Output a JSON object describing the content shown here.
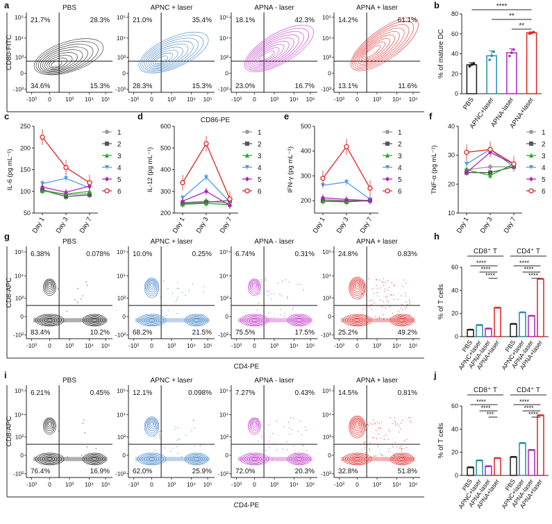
{
  "colors": {
    "black": "#1a1a1a",
    "blue": "#3b7fc4",
    "magenta": "#c030c8",
    "red": "#e02020",
    "gray": "#9a9a9a",
    "darkgray": "#555555",
    "green": "#22aa22",
    "lightblue": "#4c9be8",
    "teal": "#1f8fa0",
    "purple": "#b020c0"
  },
  "panel_letters": [
    "a",
    "b",
    "c",
    "d",
    "e",
    "f",
    "g",
    "h",
    "i",
    "j"
  ],
  "flow_a": {
    "xlabel": "CD86-PE",
    "ylabel": "CD80-FITC",
    "xticks": [
      "-10³",
      "0",
      "10³",
      "10⁴",
      "10⁵"
    ],
    "yticks": [
      "10⁵",
      "10⁴",
      "10³",
      "0",
      "-10³"
    ],
    "panels": [
      {
        "title": "PBS",
        "color_key": "black",
        "q": [
          "21.7%",
          "28.3%",
          "34.6%",
          "15.3%"
        ]
      },
      {
        "title": "APNC + laser",
        "color_key": "blue",
        "q": [
          "21.0%",
          "35.4%",
          "28.3%",
          "15.3%"
        ]
      },
      {
        "title": "APNA - laser",
        "color_key": "magenta",
        "q": [
          "18.1%",
          "42.3%",
          "23.0%",
          "16.7%"
        ]
      },
      {
        "title": "APNA + laser",
        "color_key": "red",
        "q": [
          "14.2%",
          "61.1%",
          "13.1%",
          "11.6%"
        ]
      }
    ]
  },
  "flow_g": {
    "xlabel": "CD4-PE",
    "ylabel": "CD8-APC",
    "xticks": [
      "-10³",
      "0",
      "10³",
      "10⁴",
      "10⁵"
    ],
    "yticks": [
      "10⁵",
      "10⁴",
      "10³",
      "0",
      "-10³"
    ],
    "panels": [
      {
        "title": "PBS",
        "color_key": "black",
        "q": [
          "6.38%",
          "0.078%",
          "83.4%",
          "10.2%"
        ]
      },
      {
        "title": "APNC + laser",
        "color_key": "blue",
        "q": [
          "10.0%",
          "0.25%",
          "68.2%",
          "21.5%"
        ]
      },
      {
        "title": "APNA - laser",
        "color_key": "magenta",
        "q": [
          "6.74%",
          "0.31%",
          "75.5%",
          "17.5%"
        ]
      },
      {
        "title": "APNA + laser",
        "color_key": "red",
        "q": [
          "24.8%",
          "0.83%",
          "25.2%",
          "49.2%"
        ]
      }
    ]
  },
  "flow_i": {
    "xlabel": "CD4-PE",
    "ylabel": "CD8-APC",
    "xticks": [
      "-10³",
      "0",
      "10³",
      "10⁴",
      "10⁵"
    ],
    "yticks": [
      "10⁵",
      "10⁴",
      "10³",
      "0",
      "-10³"
    ],
    "panels": [
      {
        "title": "PBS",
        "color_key": "black",
        "q": [
          "6.21%",
          "0.45%",
          "76.4%",
          "16.9%"
        ]
      },
      {
        "title": "APNC + laser",
        "color_key": "blue",
        "q": [
          "12.1%",
          "0.098%",
          "62.0%",
          "25.9%"
        ]
      },
      {
        "title": "APNA - laser",
        "color_key": "magenta",
        "q": [
          "7.27%",
          "0.43%",
          "72.0%",
          "20.3%"
        ]
      },
      {
        "title": "APNA + laser",
        "color_key": "red",
        "q": [
          "14.5%",
          "0.81%",
          "32.8%",
          "51.8%"
        ]
      }
    ]
  },
  "chart_data": [
    {
      "id": "b",
      "type": "bar",
      "title": "",
      "ylabel": "% of mature DC",
      "categories": [
        "PBS",
        "APNC+laser",
        "APNA-laser",
        "APNA+laser"
      ],
      "values": [
        29,
        38,
        41,
        61
      ],
      "errors": [
        2,
        5,
        4,
        1
      ],
      "colors": [
        "#1a1a1a",
        "#1f8fa0",
        "#b020c0",
        "#e02020"
      ],
      "ylim": [
        0,
        80
      ],
      "yticks": [
        "0",
        "20",
        "40",
        "60",
        "80"
      ],
      "significance": [
        "****",
        "**",
        "**"
      ]
    },
    {
      "id": "c",
      "type": "line",
      "ylabel": "IL-6 (pg mL⁻¹)",
      "categories": [
        "Day 1",
        "Day 3",
        "Day 7"
      ],
      "ylim": [
        50,
        250
      ],
      "yticks": [
        "50",
        "100",
        "150",
        "200",
        "250"
      ],
      "series": [
        {
          "name": "1",
          "values": [
            104,
            92,
            95
          ],
          "color": "#9a9a9a",
          "marker": "circle"
        },
        {
          "name": "2",
          "values": [
            103,
            88,
            92
          ],
          "color": "#555555",
          "marker": "square"
        },
        {
          "name": "3",
          "values": [
            101,
            94,
            100
          ],
          "color": "#22aa22",
          "marker": "triangle"
        },
        {
          "name": "4",
          "values": [
            118,
            130,
            108
          ],
          "color": "#4c9be8",
          "marker": "tridown"
        },
        {
          "name": "5",
          "values": [
            110,
            98,
            112
          ],
          "color": "#b020c0",
          "marker": "diamond"
        },
        {
          "name": "6",
          "values": [
            225,
            155,
            120
          ],
          "color": "#e02020",
          "marker": "opencircle"
        }
      ]
    },
    {
      "id": "d",
      "type": "line",
      "ylabel": "IL-12 (pg mL⁻¹)",
      "categories": [
        "Day 1",
        "Day 3",
        "Day 7"
      ],
      "ylim": [
        200,
        600
      ],
      "yticks": [
        "200",
        "300",
        "400",
        "500",
        "600"
      ],
      "series": [
        {
          "name": "1",
          "values": [
            248,
            255,
            245
          ],
          "color": "#9a9a9a",
          "marker": "circle"
        },
        {
          "name": "2",
          "values": [
            245,
            250,
            258
          ],
          "color": "#555555",
          "marker": "square"
        },
        {
          "name": "3",
          "values": [
            240,
            245,
            238
          ],
          "color": "#22aa22",
          "marker": "triangle"
        },
        {
          "name": "4",
          "values": [
            270,
            365,
            250
          ],
          "color": "#4c9be8",
          "marker": "tridown"
        },
        {
          "name": "5",
          "values": [
            255,
            300,
            235
          ],
          "color": "#b020c0",
          "marker": "diamond"
        },
        {
          "name": "6",
          "values": [
            340,
            520,
            265
          ],
          "color": "#e02020",
          "marker": "opencircle"
        }
      ]
    },
    {
      "id": "e",
      "type": "line",
      "ylabel": "IFN-γ (pg mL⁻¹)",
      "categories": [
        "Day 1",
        "Day 3",
        "Day 7"
      ],
      "ylim": [
        150,
        500
      ],
      "yticks": [
        "200",
        "300",
        "400",
        "500"
      ],
      "series": [
        {
          "name": "1",
          "values": [
            205,
            200,
            198
          ],
          "color": "#9a9a9a",
          "marker": "circle"
        },
        {
          "name": "2",
          "values": [
            200,
            198,
            202
          ],
          "color": "#555555",
          "marker": "square"
        },
        {
          "name": "3",
          "values": [
            198,
            195,
            200
          ],
          "color": "#22aa22",
          "marker": "triangle"
        },
        {
          "name": "4",
          "values": [
            262,
            275,
            205
          ],
          "color": "#4c9be8",
          "marker": "tridown"
        },
        {
          "name": "5",
          "values": [
            212,
            205,
            200
          ],
          "color": "#b020c0",
          "marker": "diamond"
        },
        {
          "name": "6",
          "values": [
            290,
            418,
            250
          ],
          "color": "#e02020",
          "marker": "opencircle"
        }
      ]
    },
    {
      "id": "f",
      "type": "line",
      "ylabel": "TNF-α (pg mL⁻¹)",
      "categories": [
        "Day 1",
        "Day 3",
        "Day 7"
      ],
      "ylim": [
        10,
        40
      ],
      "yticks": [
        "10",
        "20",
        "30",
        "40"
      ],
      "series": [
        {
          "name": "1",
          "values": [
            25,
            26,
            26
          ],
          "color": "#9a9a9a",
          "marker": "circle"
        },
        {
          "name": "2",
          "values": [
            24,
            24,
            26
          ],
          "color": "#555555",
          "marker": "square"
        },
        {
          "name": "3",
          "values": [
            25,
            23,
            27
          ],
          "color": "#22aa22",
          "marker": "triangle"
        },
        {
          "name": "4",
          "values": [
            27,
            32,
            26
          ],
          "color": "#4c9be8",
          "marker": "tridown"
        },
        {
          "name": "5",
          "values": [
            24,
            31,
            27
          ],
          "color": "#b020c0",
          "marker": "diamond"
        },
        {
          "name": "6",
          "values": [
            31,
            32,
            27
          ],
          "color": "#e02020",
          "marker": "opencircle"
        }
      ]
    },
    {
      "id": "h",
      "type": "bar",
      "ylabel": "% of T cells",
      "groups": [
        "CD8⁺ T",
        "CD4⁺ T"
      ],
      "categories": [
        "PBS",
        "APNC+laser",
        "APNA-laser",
        "APNA+laser"
      ],
      "series": [
        {
          "name": "CD8⁺ T",
          "values": [
            6,
            10,
            7,
            25
          ]
        },
        {
          "name": "CD4⁺ T",
          "values": [
            11,
            21,
            18,
            50
          ]
        }
      ],
      "colors": [
        "#1a1a1a",
        "#1f8fa0",
        "#b020c0",
        "#e02020"
      ],
      "ylim": [
        0,
        60
      ],
      "yticks": [
        "0",
        "20",
        "40",
        "60"
      ],
      "significance": [
        "****",
        "****",
        "****",
        "****",
        "****",
        "****"
      ]
    },
    {
      "id": "j",
      "type": "bar",
      "ylabel": "% of T cells",
      "groups": [
        "CD8⁺ T",
        "CD4⁺ T"
      ],
      "categories": [
        "PBS",
        "APNC+laser",
        "APNA-laser",
        "APNA+laser"
      ],
      "series": [
        {
          "name": "CD8⁺ T",
          "values": [
            7,
            13,
            8,
            15
          ]
        },
        {
          "name": "CD4⁺ T",
          "values": [
            16,
            28,
            22,
            52
          ]
        }
      ],
      "colors": [
        "#1a1a1a",
        "#1f8fa0",
        "#b020c0",
        "#e02020"
      ],
      "ylim": [
        0,
        60
      ],
      "yticks": [
        "0",
        "20",
        "40",
        "60"
      ],
      "significance": [
        "****",
        "****",
        "***",
        "****",
        "****",
        "****"
      ]
    }
  ]
}
